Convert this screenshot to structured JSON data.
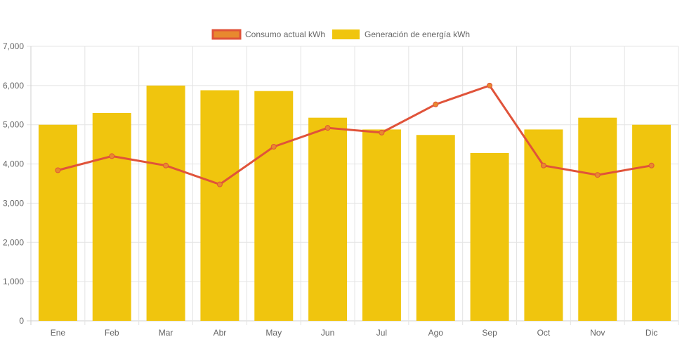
{
  "chart_data": {
    "type": "bar",
    "title": "",
    "xlabel": "",
    "ylabel": "",
    "categories": [
      "Ene",
      "Feb",
      "Mar",
      "Abr",
      "May",
      "Jun",
      "Jul",
      "Ago",
      "Sep",
      "Oct",
      "Nov",
      "Dic"
    ],
    "series": [
      {
        "name": "Consumo actual kWh",
        "type": "line",
        "color": "#E0533A",
        "point_fill": "#E8892F",
        "values": [
          3840,
          4200,
          3960,
          3480,
          4440,
          4920,
          4800,
          5520,
          6000,
          3960,
          3720,
          3960
        ]
      },
      {
        "name": "Generación de energía kWh",
        "type": "bar",
        "color": "#F0C50E",
        "values": [
          5000,
          5300,
          6000,
          5880,
          5860,
          5180,
          4880,
          4740,
          4280,
          4880,
          5180,
          5000
        ]
      }
    ],
    "ylim": [
      0,
      7000
    ],
    "yticks": [
      "0",
      "1,000",
      "2,000",
      "3,000",
      "4,000",
      "5,000",
      "6,000",
      "7,000"
    ],
    "grid": true,
    "legend_position": "top-center"
  }
}
